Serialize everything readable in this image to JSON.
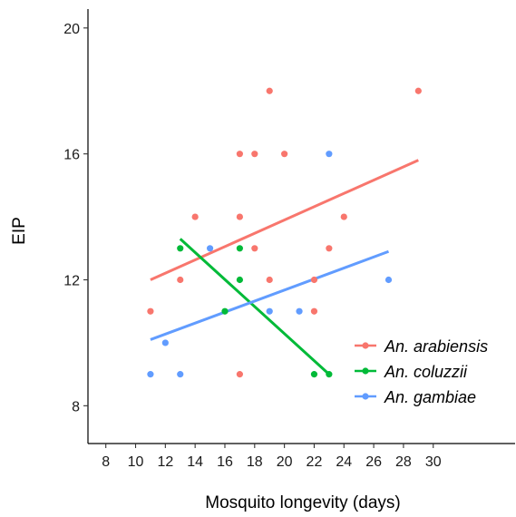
{
  "chart_data": {
    "type": "scatter",
    "title": "",
    "xlabel": "Mosquito longevity (days)",
    "ylabel": "EIP",
    "xlim": [
      6.8,
      35.5
    ],
    "ylim": [
      6.8,
      20.6
    ],
    "x_ticks": [
      8,
      10,
      12,
      14,
      16,
      18,
      20,
      22,
      24,
      26,
      28,
      30
    ],
    "y_ticks": [
      8,
      12,
      16,
      20
    ],
    "grid": false,
    "legend_position": "right",
    "series": [
      {
        "name": "An. arabiensis",
        "color": "#F8766D",
        "points": [
          [
            11,
            11
          ],
          [
            13,
            12
          ],
          [
            14,
            14
          ],
          [
            17,
            9
          ],
          [
            17,
            14
          ],
          [
            17,
            16
          ],
          [
            18,
            13
          ],
          [
            18,
            16
          ],
          [
            19,
            12
          ],
          [
            19,
            18
          ],
          [
            20,
            16
          ],
          [
            22,
            11
          ],
          [
            22,
            12
          ],
          [
            23,
            13
          ],
          [
            24,
            14
          ],
          [
            29,
            18
          ]
        ],
        "fit": [
          [
            11,
            12.0
          ],
          [
            29,
            15.8
          ]
        ]
      },
      {
        "name": "An. coluzzii",
        "color": "#00BA38",
        "points": [
          [
            13,
            13
          ],
          [
            16,
            11
          ],
          [
            17,
            12
          ],
          [
            17,
            13
          ],
          [
            22,
            9
          ],
          [
            23,
            9
          ]
        ],
        "fit": [
          [
            13,
            13.3
          ],
          [
            23,
            9.0
          ]
        ]
      },
      {
        "name": "An. gambiae",
        "color": "#619CFF",
        "points": [
          [
            11,
            9
          ],
          [
            12,
            10
          ],
          [
            13,
            9
          ],
          [
            15,
            13
          ],
          [
            19,
            11
          ],
          [
            21,
            11
          ],
          [
            23,
            16
          ],
          [
            27,
            12
          ]
        ],
        "fit": [
          [
            11,
            10.1
          ],
          [
            27,
            12.9
          ]
        ]
      }
    ]
  }
}
